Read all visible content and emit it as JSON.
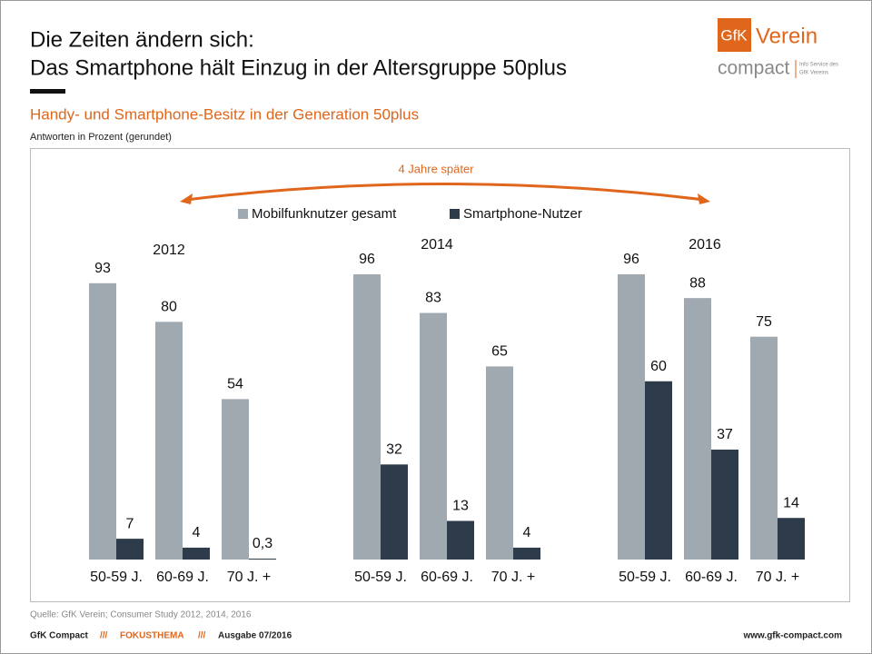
{
  "header": {
    "title_line1": "Die Zeiten ändern sich:",
    "title_line2": "Das Smartphone hält Einzug in der Altersgruppe 50plus"
  },
  "logo": {
    "mark": "GfK",
    "name": "Verein",
    "product": "compact",
    "tagline1": "Info Service des",
    "tagline2": "GfK Vereins"
  },
  "chart_data": {
    "type": "bar",
    "title": "Handy- und Smartphone-Besitz in der Generation 50plus",
    "subtitle": "Antworten in Prozent (gerundet)",
    "annotation": "4 Jahre später",
    "group_labels": [
      "2012",
      "2014",
      "2016"
    ],
    "categories": [
      "50-59 J.",
      "60-69 J.",
      "70 J. +",
      "50-59 J.",
      "60-69 J.",
      "70 J. +",
      "50-59 J.",
      "60-69 J.",
      "70 J. +"
    ],
    "series": [
      {
        "name": "Mobilfunknutzer gesamt",
        "color": "#a0a8b0",
        "values": [
          93,
          80,
          54,
          96,
          83,
          65,
          96,
          88,
          75
        ]
      },
      {
        "name": "Smartphone-Nutzer",
        "color": "#2e3b4a",
        "values": [
          7,
          4,
          0.3,
          32,
          13,
          4,
          60,
          37,
          14
        ],
        "value_labels": [
          "7",
          "4",
          "0,3",
          "32",
          "13",
          "4",
          "60",
          "37",
          "14"
        ]
      }
    ],
    "legend": "top"
  },
  "source": "Quelle: GfK Verein; Consumer Study 2012, 2014, 2016",
  "footer": {
    "brand": "GfK Compact",
    "separator": "///",
    "section": "FOKUSTHEMA",
    "issue": "Ausgabe 07/2016",
    "url": "www.gfk-compact.com"
  }
}
